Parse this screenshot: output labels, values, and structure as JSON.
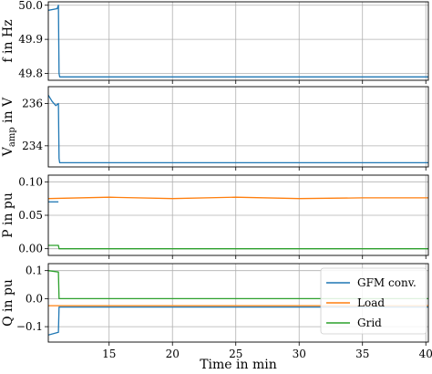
{
  "chart_data": [
    {
      "type": "line",
      "ylabel": "f in Hz",
      "ylabel_sub": "",
      "ylabel_tail": "",
      "xlim": [
        10.2,
        40.2
      ],
      "ylim": [
        49.78,
        50.01
      ],
      "yticks": [
        49.8,
        49.9,
        50.0
      ],
      "ytick_labels": [
        "49.8",
        "49.9",
        "50.0"
      ],
      "xticks": [
        15,
        20,
        25,
        30,
        35,
        40
      ],
      "grid": true,
      "series": [
        {
          "color": "#1f77b4",
          "x": [
            10.2,
            10.9,
            11.0,
            11.05,
            11.1,
            40.2
          ],
          "y": [
            49.985,
            49.99,
            50.0,
            49.8,
            49.79,
            49.79
          ]
        }
      ]
    },
    {
      "type": "line",
      "ylabel": "V",
      "ylabel_sub": "amp",
      "ylabel_tail": " in V",
      "xlim": [
        10.2,
        40.2
      ],
      "ylim": [
        233.0,
        236.8
      ],
      "yticks": [
        234,
        236
      ],
      "ytick_labels": [
        "234",
        "236"
      ],
      "xticks": [
        15,
        20,
        25,
        30,
        35,
        40
      ],
      "grid": true,
      "series": [
        {
          "color": "#1f77b4",
          "x": [
            10.2,
            10.5,
            10.8,
            11.0,
            11.05,
            11.1,
            40.2
          ],
          "y": [
            236.4,
            236.1,
            235.9,
            236.0,
            233.4,
            233.2,
            233.2
          ]
        }
      ]
    },
    {
      "type": "line",
      "ylabel": "P in pu",
      "ylabel_sub": "",
      "ylabel_tail": "",
      "xlim": [
        10.2,
        40.2
      ],
      "ylim": [
        -0.01,
        0.11
      ],
      "yticks": [
        0.0,
        0.05,
        0.1
      ],
      "ytick_labels": [
        "0.00",
        "0.05",
        "0.10"
      ],
      "xticks": [
        15,
        20,
        25,
        30,
        35,
        40
      ],
      "grid": true,
      "series": [
        {
          "color": "#1f77b4",
          "x": [
            10.2,
            11.0
          ],
          "y": [
            0.07,
            0.07
          ]
        },
        {
          "color": "#ff7f0e",
          "x": [
            10.2,
            15,
            20,
            25,
            30,
            35,
            40,
            40.2
          ],
          "y": [
            0.075,
            0.077,
            0.075,
            0.077,
            0.075,
            0.076,
            0.076,
            0.076
          ]
        },
        {
          "color": "#2ca02c",
          "x": [
            10.2,
            11.0,
            11.05,
            40.2
          ],
          "y": [
            0.005,
            0.005,
            0.0,
            0.0
          ]
        }
      ]
    },
    {
      "type": "line",
      "ylabel": "Q in pu",
      "ylabel_sub": "",
      "ylabel_tail": "",
      "xlim": [
        10.2,
        40.2
      ],
      "ylim": [
        -0.155,
        0.125
      ],
      "yticks": [
        -0.1,
        0.0,
        0.1
      ],
      "ytick_labels": [
        "−0.1",
        "0.0",
        "0.1"
      ],
      "xticks": [
        15,
        20,
        25,
        30,
        35,
        40
      ],
      "xtick_labels": [
        "15",
        "20",
        "25",
        "30",
        "35",
        "40"
      ],
      "xlabel": "Time in min",
      "grid": true,
      "legend": {
        "placement": "right",
        "entries": [
          {
            "label": "GFM conv.",
            "color": "#1f77b4"
          },
          {
            "label": "Load",
            "color": "#ff7f0e"
          },
          {
            "label": "Grid",
            "color": "#2ca02c"
          }
        ]
      },
      "series": [
        {
          "color": "#1f77b4",
          "x": [
            10.2,
            11.0,
            11.05,
            11.1,
            40.2
          ],
          "y": [
            -0.13,
            -0.12,
            -0.03,
            -0.03,
            -0.03
          ]
        },
        {
          "color": "#ff7f0e",
          "x": [
            10.2,
            40.2
          ],
          "y": [
            -0.025,
            -0.025
          ]
        },
        {
          "color": "#2ca02c",
          "x": [
            10.2,
            11.0,
            11.05,
            40.2
          ],
          "y": [
            0.1,
            0.095,
            0.0,
            0.0
          ]
        }
      ]
    }
  ]
}
